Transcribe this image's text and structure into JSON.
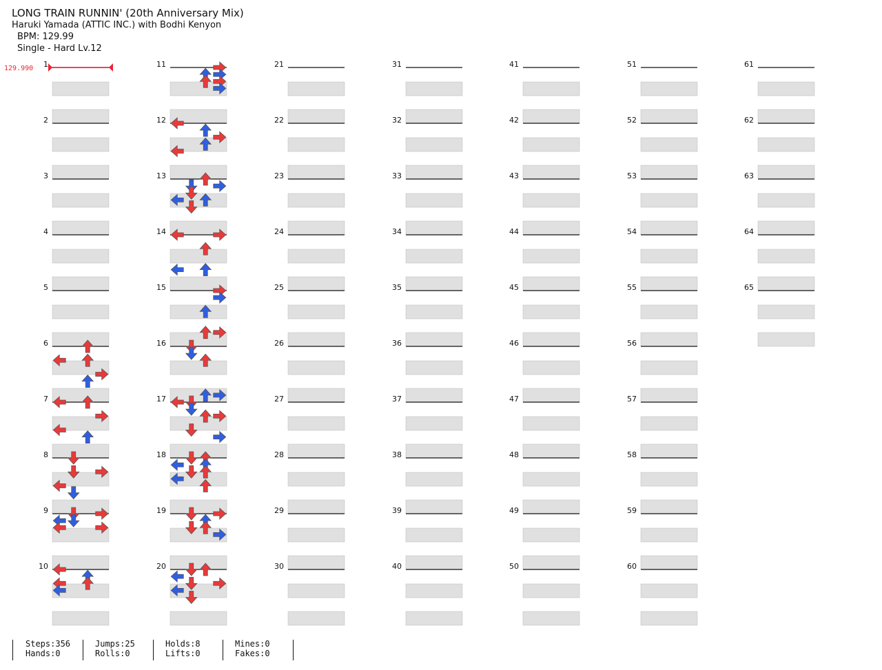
{
  "song": {
    "title": "LONG TRAIN RUNNIN' (20th Anniversary Mix)",
    "artist": "Haruki Yamada (ATTIC INC.) with Bodhi Kenyon",
    "bpm_label": "BPM: 129.99",
    "difficulty_label": "Single - Hard  Lv.12"
  },
  "bpm_marker": "129.990",
  "stats": {
    "steps": "Steps:356",
    "hands": "Hands:0",
    "jumps": "Jumps:25",
    "rolls": "Rolls:0",
    "holds": "Holds:8",
    "lifts": "Lifts:0",
    "mines": "Mines:0",
    "fakes": "Fakes:0"
  },
  "colors": {
    "quarter": "#e83a3a",
    "eighth": "#2f5fe0",
    "sixteenth": "#f2d21b",
    "hold": "#7ed27a",
    "band": "#e0e0e0"
  },
  "chart_data": {
    "type": "table",
    "measure_count": 65,
    "lanes": [
      "left",
      "down",
      "up",
      "right"
    ],
    "measure_labels": [
      "1",
      "2",
      "3",
      "4",
      "5",
      "6",
      "7",
      "8",
      "9",
      "10",
      "11",
      "12",
      "13",
      "14",
      "15",
      "16",
      "17",
      "18",
      "19",
      "20",
      "21",
      "22",
      "23",
      "24",
      "25",
      "26",
      "27",
      "28",
      "29",
      "30",
      "31",
      "32",
      "33",
      "34",
      "35",
      "36",
      "37",
      "38",
      "39",
      "40",
      "41",
      "42",
      "43",
      "44",
      "45",
      "46",
      "47",
      "48",
      "49",
      "50",
      "51",
      "52",
      "53",
      "54",
      "55",
      "56",
      "57",
      "58",
      "59",
      "60",
      "61",
      "62",
      "63",
      "64",
      "65"
    ],
    "notes": [
      [
        6,
        2,
        0.0
      ],
      [
        6,
        0,
        0.25
      ],
      [
        6,
        2,
        0.25
      ],
      [
        6,
        3,
        0.5
      ],
      [
        6,
        2,
        0.625
      ],
      [
        7,
        0,
        0.0
      ],
      [
        7,
        2,
        0.0
      ],
      [
        7,
        3,
        0.25
      ],
      [
        7,
        0,
        0.5
      ],
      [
        7,
        2,
        0.625
      ],
      [
        8,
        1,
        0.0
      ],
      [
        8,
        1,
        0.25
      ],
      [
        8,
        3,
        0.25
      ],
      [
        8,
        0,
        0.5
      ],
      [
        8,
        1,
        0.625
      ],
      [
        9,
        1,
        0.0
      ],
      [
        9,
        3,
        0.0
      ],
      [
        9,
        0,
        0.125
      ],
      [
        9,
        1,
        0.125
      ],
      [
        9,
        0,
        0.25
      ],
      [
        9,
        3,
        0.25
      ],
      [
        10,
        0,
        0.0
      ],
      [
        10,
        2,
        0.125
      ],
      [
        10,
        0,
        0.25
      ],
      [
        10,
        2,
        0.25
      ],
      [
        10,
        0,
        0.375
      ],
      [
        11,
        3,
        0.0
      ],
      [
        11,
        2,
        0.125
      ],
      [
        11,
        3,
        0.125
      ],
      [
        11,
        2,
        0.25
      ],
      [
        11,
        3,
        0.25
      ],
      [
        11,
        3,
        0.375
      ],
      [
        12,
        0,
        0.0
      ],
      [
        12,
        2,
        0.125
      ],
      [
        12,
        3,
        0.25
      ],
      [
        12,
        2,
        0.375
      ],
      [
        12,
        0,
        0.5
      ],
      [
        13,
        2,
        0.0
      ],
      [
        13,
        1,
        0.125
      ],
      [
        13,
        3,
        0.125
      ],
      [
        13,
        1,
        0.25
      ],
      [
        13,
        0,
        0.375
      ],
      [
        13,
        2,
        0.375
      ],
      [
        13,
        1,
        0.5
      ],
      [
        14,
        3,
        0.0
      ],
      [
        14,
        0,
        0.0
      ],
      [
        14,
        2,
        0.25
      ],
      [
        14,
        0,
        0.625
      ],
      [
        14,
        2,
        0.625
      ],
      [
        15,
        3,
        0.0
      ],
      [
        15,
        3,
        0.125
      ],
      [
        15,
        2,
        0.375
      ],
      [
        15,
        3,
        0.75
      ],
      [
        15,
        2,
        0.75
      ],
      [
        16,
        1,
        0.0
      ],
      [
        16,
        1,
        0.125
      ],
      [
        16,
        2,
        0.25
      ],
      [
        16,
        3,
        0.875
      ],
      [
        16,
        2,
        0.875
      ],
      [
        17,
        0,
        0.0
      ],
      [
        17,
        1,
        0.0
      ],
      [
        17,
        1,
        0.125
      ],
      [
        17,
        2,
        0.25
      ],
      [
        17,
        3,
        0.25
      ],
      [
        17,
        1,
        0.5
      ],
      [
        17,
        3,
        0.625
      ],
      [
        18,
        1,
        0.0
      ],
      [
        18,
        2,
        0.0
      ],
      [
        18,
        0,
        0.125
      ],
      [
        18,
        2,
        0.125
      ],
      [
        18,
        1,
        0.25
      ],
      [
        18,
        2,
        0.25
      ],
      [
        18,
        0,
        0.375
      ],
      [
        18,
        2,
        0.5
      ],
      [
        19,
        1,
        0.0
      ],
      [
        19,
        3,
        0.0
      ],
      [
        19,
        2,
        0.125
      ],
      [
        19,
        1,
        0.25
      ],
      [
        19,
        2,
        0.25
      ],
      [
        19,
        3,
        0.375
      ],
      [
        20,
        1,
        0.0
      ],
      [
        20,
        2,
        0.0
      ],
      [
        20,
        0,
        0.125
      ],
      [
        20,
        1,
        0.25
      ],
      [
        20,
        3,
        0.25
      ],
      [
        20,
        0,
        0.375
      ],
      [
        20,
        1,
        0.5
      ]
    ]
  }
}
